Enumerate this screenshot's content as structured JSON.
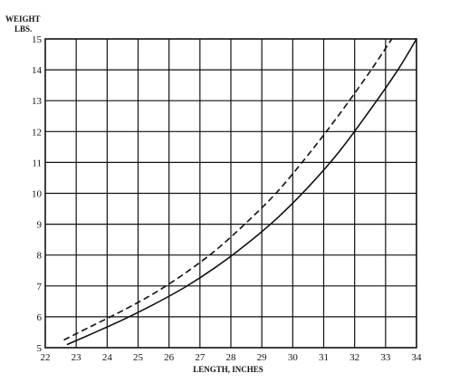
{
  "chart_data": {
    "type": "line",
    "title": "",
    "xlabel": "LENGTH, INCHES",
    "ylabel_line1": "WEIGHT",
    "ylabel_line2": "LBS.",
    "xlim": [
      22,
      34
    ],
    "ylim": [
      5,
      15
    ],
    "x_ticks": [
      "22",
      "23",
      "24",
      "25",
      "26",
      "27",
      "28",
      "29",
      "30",
      "31",
      "32",
      "33",
      "34"
    ],
    "y_ticks": [
      "5",
      "6",
      "7",
      "8",
      "9",
      "10",
      "11",
      "12",
      "13",
      "14",
      "15"
    ],
    "grid": true,
    "legend": "none",
    "series": [
      {
        "style": "solid",
        "color": "#111111",
        "x": [
          22.7,
          23.5,
          24.5,
          25.5,
          26.5,
          27.5,
          28.5,
          29.5,
          30.5,
          31.5,
          32.5,
          33.4,
          34.0
        ],
        "y": [
          5.1,
          5.45,
          5.9,
          6.4,
          6.95,
          7.6,
          8.35,
          9.2,
          10.2,
          11.35,
          12.7,
          14.0,
          15.0
        ]
      },
      {
        "style": "dashed",
        "color": "#111111",
        "x": [
          22.6,
          23.5,
          24.5,
          25.5,
          26.5,
          27.5,
          28.5,
          29.5,
          30.5,
          31.5,
          32.5,
          33.2
        ],
        "y": [
          5.25,
          5.7,
          6.2,
          6.75,
          7.4,
          8.15,
          9.05,
          10.05,
          11.25,
          12.55,
          13.95,
          15.0
        ]
      }
    ]
  }
}
